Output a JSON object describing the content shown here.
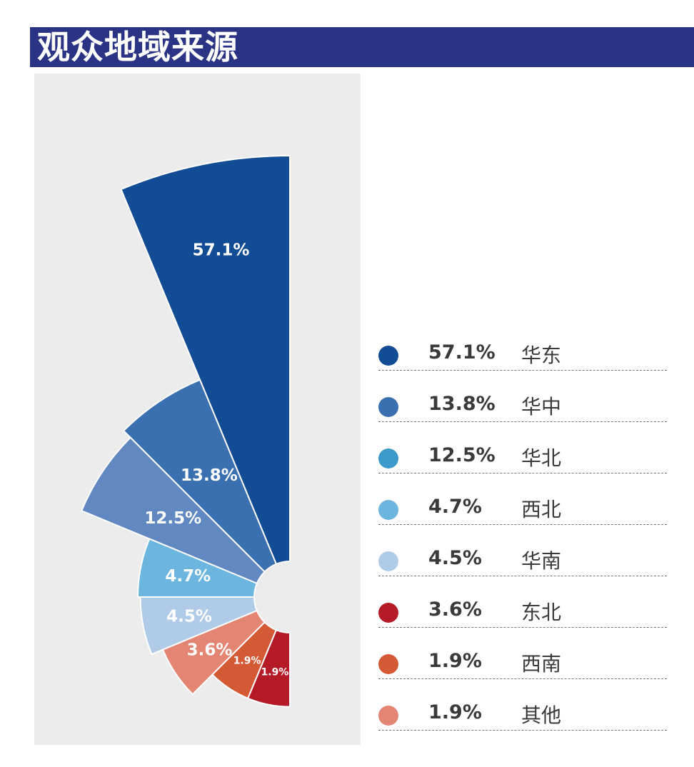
{
  "title": "观众地域来源",
  "chart_data": {
    "type": "rose",
    "values": [
      57.1,
      13.8,
      12.5,
      4.7,
      4.5,
      3.6,
      1.9,
      1.9
    ],
    "labels": [
      "57.1%",
      "13.8%",
      "12.5%",
      "4.7%",
      "4.5%",
      "3.6%",
      "1.9%",
      "1.9%"
    ],
    "colors": [
      "#124c95",
      "#3a70b0",
      "#6188c0",
      "#6bb5df",
      "#afcbe8",
      "#e38572",
      "#d45a36",
      "#b51b27"
    ]
  },
  "legend": [
    {
      "pct": "57.1%",
      "name": "华东",
      "color": "#124c95"
    },
    {
      "pct": "13.8%",
      "name": "华中",
      "color": "#3a70b0"
    },
    {
      "pct": "12.5%",
      "name": "华北",
      "color": "#3c9acb"
    },
    {
      "pct": "4.7%",
      "name": "西北",
      "color": "#6bb5df"
    },
    {
      "pct": "4.5%",
      "name": "华南",
      "color": "#afcbe8"
    },
    {
      "pct": "3.6%",
      "name": "东北",
      "color": "#b51b27"
    },
    {
      "pct": "1.9%",
      "name": "西南",
      "color": "#d45a36"
    },
    {
      "pct": "1.9%",
      "name": "其他",
      "color": "#e38572"
    }
  ]
}
